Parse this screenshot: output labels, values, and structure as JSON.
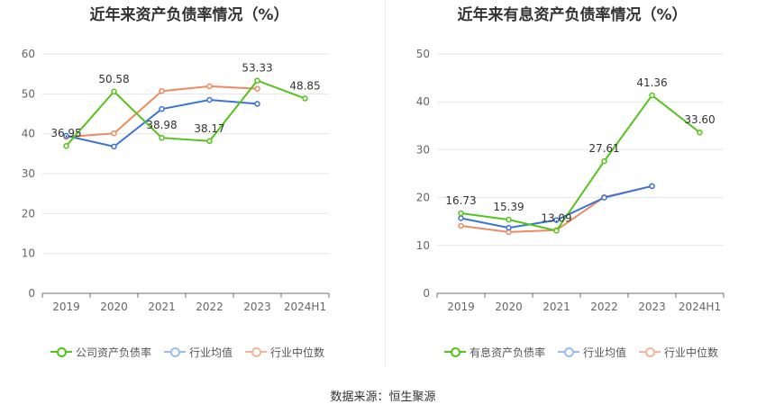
{
  "source": "数据来源：恒生聚源",
  "chart_data": [
    {
      "type": "line",
      "title": "近年来资产负债率情况（%）",
      "categories": [
        "2019",
        "2020",
        "2021",
        "2022",
        "2023",
        "2024H1"
      ],
      "ylim": [
        0,
        60
      ],
      "yticks": [
        "0",
        "10",
        "20",
        "30",
        "40",
        "50",
        "60"
      ],
      "grid": true,
      "legend_position": "bottom",
      "series": [
        {
          "name": "公司资产负债率",
          "color": "#52c41a",
          "values": [
            36.95,
            50.58,
            38.98,
            38.17,
            53.33,
            48.85
          ],
          "labels": [
            "36.95",
            "50.58",
            "38.98",
            "38.17",
            "53.33",
            "48.85"
          ]
        },
        {
          "name": "行业均值",
          "color": "#3b74d6",
          "values": [
            39.5,
            36.8,
            46.2,
            48.5,
            47.5,
            null
          ]
        },
        {
          "name": "行业中位数",
          "color": "#ee8a5f",
          "values": [
            39.2,
            40.1,
            50.7,
            51.9,
            51.3,
            null
          ]
        }
      ]
    },
    {
      "type": "line",
      "title": "近年来有息资产负债率情况（%）",
      "categories": [
        "2019",
        "2020",
        "2021",
        "2022",
        "2023",
        "2024H1"
      ],
      "ylim": [
        0,
        50
      ],
      "yticks": [
        "0",
        "10",
        "20",
        "30",
        "40",
        "50"
      ],
      "grid": true,
      "legend_position": "bottom",
      "series": [
        {
          "name": "有息资产负债率",
          "color": "#52c41a",
          "values": [
            16.73,
            15.39,
            13.09,
            27.61,
            41.36,
            33.6
          ],
          "labels": [
            "16.73",
            "15.39",
            "13.09",
            "27.61",
            "41.36",
            "33.60"
          ]
        },
        {
          "name": "行业均值",
          "color": "#3b74d6",
          "values": [
            15.7,
            13.7,
            15.3,
            20.0,
            22.4,
            null
          ]
        },
        {
          "name": "行业中位数",
          "color": "#ee8a5f",
          "values": [
            14.1,
            12.8,
            13.2,
            20.1,
            22.4,
            null
          ]
        }
      ]
    }
  ]
}
